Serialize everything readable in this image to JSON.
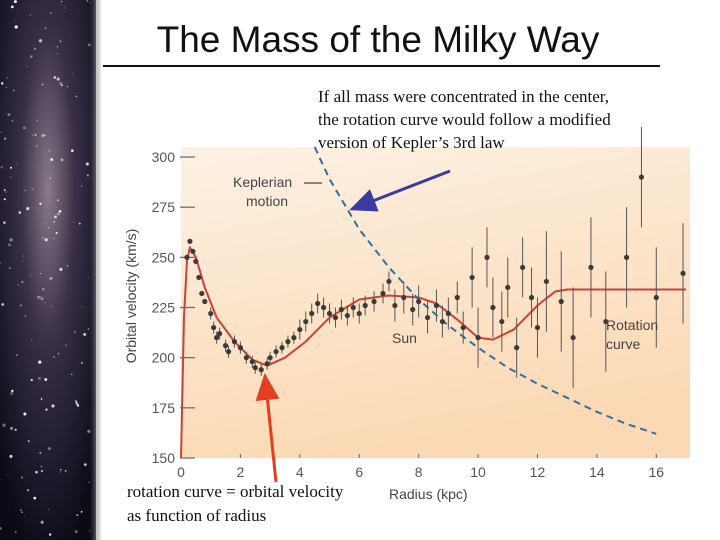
{
  "title": "The Mass of the Milky Way",
  "annotation_top": [
    "If all mass were concentrated in the center,",
    "the rotation curve would follow a modified",
    "version of Kepler’s 3rd law"
  ],
  "annotation_bottom": [
    "rotation curve = orbital velocity",
    "as function of radius"
  ],
  "chart_data": {
    "type": "scatter",
    "xlabel": "Radius (kpc)",
    "ylabel": "Orbital velocity (km/s)",
    "xlim": [
      0,
      17
    ],
    "ylim": [
      150,
      305
    ],
    "xticks": [
      0,
      2,
      4,
      6,
      8,
      10,
      12,
      14,
      16
    ],
    "yticks": [
      150,
      175,
      200,
      225,
      250,
      275,
      300
    ],
    "sun_label": "Sun",
    "series": [
      {
        "type": "scatter",
        "color": "#3a3a3a",
        "x": [
          0.2,
          0.3,
          0.4,
          0.5,
          0.6,
          0.7,
          0.8,
          1.0,
          1.1,
          1.2,
          1.3,
          1.5,
          1.6,
          1.8,
          2.0,
          2.2,
          2.4,
          2.5,
          2.7,
          2.9,
          3.0,
          3.2,
          3.4,
          3.6,
          3.8,
          4.0,
          4.2,
          4.4,
          4.6,
          4.8,
          5.0,
          5.2,
          5.4,
          5.6,
          5.8,
          6.0,
          6.2,
          6.5,
          6.8,
          7.0,
          7.2,
          7.5,
          7.8,
          8.0,
          8.3,
          8.6,
          8.8,
          9.0,
          9.3,
          9.5,
          9.8,
          10.0,
          10.3,
          10.5,
          10.8,
          11.0,
          11.3,
          11.5,
          11.8,
          12.0,
          12.3,
          12.8,
          13.2,
          13.8,
          14.3,
          15.0,
          15.5,
          16.0,
          16.9
        ],
        "values": [
          250,
          258,
          253,
          248,
          240,
          232,
          228,
          222,
          215,
          210,
          212,
          206,
          203,
          208,
          205,
          200,
          198,
          195,
          194,
          197,
          200,
          203,
          205,
          208,
          210,
          214,
          218,
          222,
          227,
          225,
          222,
          220,
          224,
          221,
          225,
          222,
          226,
          228,
          232,
          238,
          226,
          230,
          224,
          228,
          220,
          226,
          218,
          222,
          230,
          215,
          240,
          210,
          250,
          225,
          218,
          235,
          205,
          245,
          230,
          215,
          238,
          228,
          210,
          245,
          218,
          250,
          290,
          230,
          242
        ],
        "errors": [
          0,
          0,
          0,
          0,
          0,
          0,
          0,
          3,
          3,
          3,
          3,
          3,
          3,
          3,
          3,
          3,
          3,
          3,
          3,
          3,
          3,
          3,
          3,
          3,
          3,
          5,
          5,
          5,
          5,
          5,
          5,
          5,
          5,
          5,
          5,
          5,
          5,
          5,
          5,
          5,
          8,
          8,
          8,
          8,
          8,
          8,
          8,
          8,
          8,
          8,
          15,
          15,
          15,
          15,
          15,
          15,
          15,
          15,
          15,
          15,
          25,
          25,
          25,
          25,
          25,
          25,
          25,
          25,
          25
        ]
      },
      {
        "type": "line",
        "color": "#c8423a",
        "label": [
          "Rotation",
          "curve"
        ],
        "x": [
          0,
          0.1,
          0.2,
          0.3,
          0.5,
          0.8,
          1.2,
          1.8,
          2.4,
          2.9,
          3.5,
          4.2,
          5,
          6,
          7,
          8,
          8.6,
          9.3,
          10,
          10.5,
          11.2,
          12,
          12.6,
          13,
          14,
          15,
          16,
          17
        ],
        "values": [
          150,
          220,
          248,
          255,
          250,
          235,
          220,
          208,
          199,
          196,
          200,
          208,
          220,
          229,
          231,
          230,
          227,
          219,
          210,
          209,
          214,
          226,
          233,
          234,
          234,
          234,
          234,
          234
        ]
      },
      {
        "type": "line",
        "color": "#2f6e9e",
        "dashed": true,
        "label": [
          "Keplerian",
          "motion"
        ],
        "x": [
          4.5,
          5,
          6,
          7,
          8,
          9,
          10,
          11,
          12,
          13,
          14,
          15,
          16
        ],
        "values": [
          305,
          289,
          264,
          245,
          229,
          216,
          205,
          195,
          187,
          180,
          173,
          167,
          162
        ]
      }
    ]
  }
}
